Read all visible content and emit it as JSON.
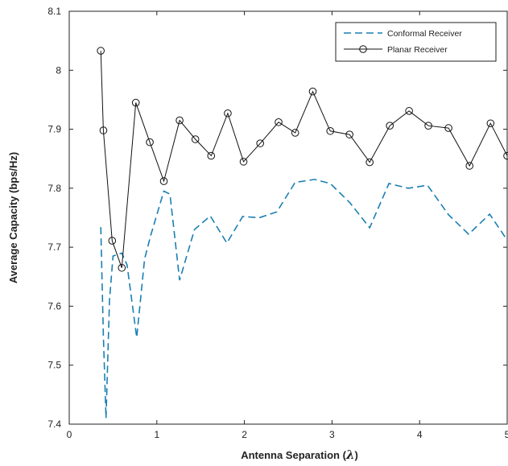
{
  "chart_data": {
    "type": "line",
    "title": "",
    "xlabel": "Antenna Separation (",
    "xlabel_symbol": "λ",
    "xlabel_close": ")",
    "ylabel": "Average Capacity (bps/Hz)",
    "xlim": [
      0,
      5
    ],
    "ylim": [
      7.4,
      8.1
    ],
    "xticks": [
      0,
      1,
      2,
      3,
      4,
      5
    ],
    "xtick_labels": [
      "0",
      "1",
      "2",
      "3",
      "4",
      "5"
    ],
    "yticks": [
      7.4,
      7.5,
      7.6,
      7.7,
      7.8,
      7.9,
      8.0,
      8.1
    ],
    "ytick_labels": [
      "7.4",
      "7.5",
      "7.6",
      "7.7",
      "7.8",
      "7.9",
      "8",
      "8.1"
    ],
    "grid": false,
    "legend_position": "top-right",
    "series": [
      {
        "name": "Conformal Receiver",
        "color": "#1a7fb3",
        "line_style": "dashed",
        "marker": "none",
        "x": [
          0.36,
          0.39,
          0.42,
          0.46,
          0.5,
          0.6,
          0.66,
          0.77,
          0.86,
          0.93,
          1.08,
          1.15,
          1.26,
          1.43,
          1.61,
          1.8,
          1.98,
          2.17,
          2.37,
          2.58,
          2.73,
          2.8,
          2.98,
          3.2,
          3.43,
          3.65,
          3.87,
          4.09,
          4.33,
          4.56,
          4.8,
          5.0
        ],
        "y": [
          7.734,
          7.55,
          7.41,
          7.61,
          7.685,
          7.69,
          7.67,
          7.547,
          7.68,
          7.72,
          7.795,
          7.79,
          7.644,
          7.73,
          7.753,
          7.707,
          7.752,
          7.75,
          7.76,
          7.81,
          7.813,
          7.815,
          7.808,
          7.776,
          7.733,
          7.808,
          7.8,
          7.805,
          7.755,
          7.722,
          7.756,
          7.712
        ]
      },
      {
        "name": "Planar Receiver",
        "color": "#111111",
        "line_style": "solid",
        "marker": "circle",
        "x": [
          0.36,
          0.39,
          0.49,
          0.6,
          0.76,
          0.92,
          1.08,
          1.26,
          1.44,
          1.62,
          1.81,
          1.99,
          2.18,
          2.39,
          2.58,
          2.78,
          2.98,
          3.2,
          3.43,
          3.66,
          3.88,
          4.1,
          4.33,
          4.57,
          4.81,
          5.0
        ],
        "y": [
          8.033,
          7.898,
          7.711,
          7.665,
          7.945,
          7.878,
          7.812,
          7.915,
          7.883,
          7.855,
          7.927,
          7.845,
          7.876,
          7.912,
          7.894,
          7.964,
          7.897,
          7.891,
          7.844,
          7.906,
          7.931,
          7.906,
          7.902,
          7.838,
          7.91,
          7.855
        ]
      }
    ]
  }
}
